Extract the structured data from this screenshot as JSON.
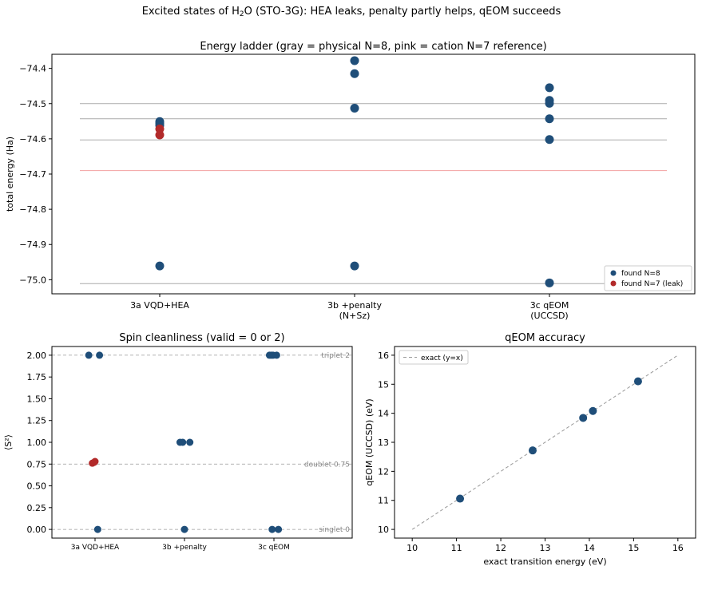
{
  "suptitle": "Excited states of H₂O (STO-3G): HEA leaks, penalty partly helps, qEOM succeeds",
  "caption": "",
  "colors": {
    "n8": "#1f4e79",
    "n7": "#b22a2a",
    "gray": "#aaaaaa",
    "pink": "#f2a0a0",
    "dashed": "#999999"
  },
  "chart_data": [
    {
      "id": "ladder",
      "type": "scatter",
      "title": "Energy ladder  (gray = physical N=8, pink = cation N=7 reference)",
      "ylabel": "total energy (Ha)",
      "categories": [
        "3a VQD+HEA",
        "3b +penalty\n(N+Sz)",
        "3c qEOM\n(UCCSD)"
      ],
      "ylim": [
        -75.04,
        -74.36
      ],
      "yticks": [
        -74.4,
        -74.5,
        -74.6,
        -74.7,
        -74.8,
        -74.9,
        -75.0
      ],
      "ytick_labels": [
        "−74.4",
        "−74.5",
        "−74.6",
        "−74.7",
        "−74.8",
        "−74.9",
        "−75.0"
      ],
      "reference_lines": [
        {
          "y": -74.5,
          "kind": "physical"
        },
        {
          "y": -74.543,
          "kind": "physical"
        },
        {
          "y": -74.603,
          "kind": "physical"
        },
        {
          "y": -75.011,
          "kind": "physical"
        },
        {
          "y": -74.69,
          "kind": "cation"
        }
      ],
      "series": [
        {
          "name": "found N=8",
          "points": [
            {
              "cat": 0,
              "y": -74.551
            },
            {
              "cat": 0,
              "y": -74.556
            },
            {
              "cat": 0,
              "y": -74.562
            },
            {
              "cat": 0,
              "y": -74.961
            },
            {
              "cat": 1,
              "y": -74.378
            },
            {
              "cat": 1,
              "y": -74.415
            },
            {
              "cat": 1,
              "y": -74.513
            },
            {
              "cat": 1,
              "y": -74.961
            },
            {
              "cat": 2,
              "y": -74.455
            },
            {
              "cat": 2,
              "y": -74.491
            },
            {
              "cat": 2,
              "y": -74.499
            },
            {
              "cat": 2,
              "y": -74.543
            },
            {
              "cat": 2,
              "y": -74.602
            },
            {
              "cat": 2,
              "y": -75.009
            }
          ]
        },
        {
          "name": "found N=7 (leak)",
          "points": [
            {
              "cat": 0,
              "y": -74.572
            },
            {
              "cat": 0,
              "y": -74.589
            }
          ]
        }
      ],
      "legend": {
        "placement": "lower-right",
        "entries": [
          "found N=8",
          "found N=7 (leak)"
        ]
      }
    },
    {
      "id": "spin",
      "type": "scatter",
      "title": "Spin cleanliness (valid = 0 or 2)",
      "ylabel": "⟨S²⟩",
      "categories": [
        "3a VQD+HEA",
        "3b +penalty",
        "3c qEOM"
      ],
      "ylim": [
        -0.1,
        2.1
      ],
      "yticks": [
        0,
        0.25,
        0.5,
        0.75,
        1.0,
        1.25,
        1.5,
        1.75,
        2.0
      ],
      "ytick_labels": [
        "0.00",
        "0.25",
        "0.50",
        "0.75",
        "1.00",
        "1.25",
        "1.50",
        "1.75",
        "2.00"
      ],
      "reference_lines": [
        {
          "y": 2,
          "label": "triplet 2"
        },
        {
          "y": 0.75,
          "label": "doublet 0.75"
        },
        {
          "y": 0,
          "label": "singlet 0"
        }
      ],
      "series": [
        {
          "name": "N=8",
          "points": [
            {
              "cat": 0,
              "dx": -0.07,
              "y": 2.0
            },
            {
              "cat": 0,
              "dx": 0.05,
              "y": 2.0
            },
            {
              "cat": 0,
              "dx": 0.03,
              "y": 0.0
            },
            {
              "cat": 1,
              "dx": -0.05,
              "y": 1.0
            },
            {
              "cat": 1,
              "dx": -0.02,
              "y": 1.0
            },
            {
              "cat": 1,
              "dx": 0.06,
              "y": 1.0
            },
            {
              "cat": 1,
              "dx": 0.0,
              "y": 0.0
            },
            {
              "cat": 2,
              "dx": -0.05,
              "y": 2.0
            },
            {
              "cat": 2,
              "dx": -0.03,
              "y": 2.0
            },
            {
              "cat": 2,
              "dx": -0.01,
              "y": 2.0
            },
            {
              "cat": 2,
              "dx": 0.03,
              "y": 2.0
            },
            {
              "cat": 2,
              "dx": -0.02,
              "y": 0.0
            },
            {
              "cat": 2,
              "dx": 0.05,
              "y": 0.0
            }
          ]
        },
        {
          "name": "N=7",
          "points": [
            {
              "cat": 0,
              "dx": -0.03,
              "y": 0.76
            },
            {
              "cat": 0,
              "dx": -0.01,
              "y": 0.77
            },
            {
              "cat": 0,
              "dx": 0.0,
              "y": 0.78
            }
          ]
        }
      ]
    },
    {
      "id": "qeom",
      "type": "scatter",
      "title": "qEOM accuracy",
      "xlabel": "exact transition energy (eV)",
      "ylabel": "qEOM (UCCSD) (eV)",
      "xlim": [
        9.6,
        16.4
      ],
      "ylim": [
        9.7,
        16.3
      ],
      "xticks": [
        10,
        11,
        12,
        13,
        14,
        15,
        16
      ],
      "yticks": [
        10,
        11,
        12,
        13,
        14,
        15,
        16
      ],
      "diagonal": {
        "from": 10,
        "to": 16,
        "label": "exact (y=x)"
      },
      "points": [
        {
          "x": 11.08,
          "y": 11.06
        },
        {
          "x": 12.72,
          "y": 12.72
        },
        {
          "x": 13.86,
          "y": 13.84
        },
        {
          "x": 14.08,
          "y": 14.08
        },
        {
          "x": 15.1,
          "y": 15.1
        }
      ],
      "legend": {
        "placement": "upper-left",
        "entries": [
          "exact (y=x)"
        ]
      }
    }
  ]
}
